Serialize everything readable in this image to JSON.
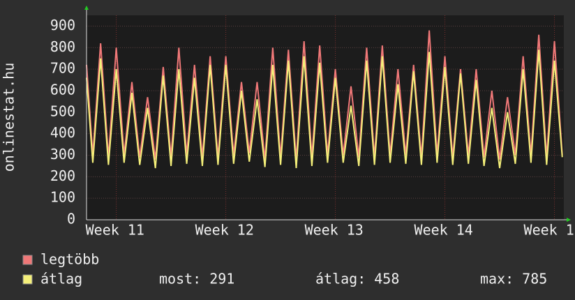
{
  "chart_data": {
    "type": "line",
    "y_label": "onlinestat.hu",
    "x": [
      0,
      0.4,
      0.9,
      1.4,
      1.9,
      2.4,
      2.9,
      3.4,
      3.9,
      4.4,
      4.9,
      5.4,
      5.9,
      6.4,
      6.9,
      7.4,
      7.9,
      8.4,
      8.9,
      9.4,
      9.9,
      10.4,
      10.9,
      11.4,
      11.9,
      12.4,
      12.9,
      13.4,
      13.9,
      14.4,
      14.9,
      15.4,
      15.9,
      16.4,
      16.9,
      17.4,
      17.9,
      18.4,
      18.9,
      19.4,
      19.9,
      20.4,
      20.9,
      21.4,
      21.9,
      22.4,
      22.9,
      23.4,
      23.9,
      24.4,
      24.9,
      25.4,
      25.9,
      26.4,
      26.9,
      27.4,
      27.9,
      28.4,
      28.9,
      29.4,
      29.9,
      30.4
    ],
    "series": [
      {
        "name": "legtöbb",
        "color": "#f07878",
        "values": [
          720,
          300,
          820,
          290,
          800,
          300,
          640,
          290,
          570,
          280,
          710,
          290,
          800,
          300,
          720,
          290,
          760,
          290,
          760,
          300,
          640,
          310,
          640,
          280,
          800,
          290,
          790,
          280,
          830,
          290,
          810,
          300,
          700,
          300,
          620,
          290,
          800,
          290,
          810,
          300,
          700,
          300,
          720,
          290,
          880,
          300,
          760,
          290,
          700,
          300,
          700,
          290,
          600,
          280,
          570,
          300,
          760,
          300,
          860,
          290,
          830,
          300
        ]
      },
      {
        "name": "átlag",
        "color": "#f5f07a",
        "values": [
          660,
          265,
          750,
          255,
          700,
          265,
          590,
          255,
          520,
          240,
          670,
          250,
          700,
          260,
          660,
          250,
          720,
          255,
          720,
          260,
          600,
          270,
          560,
          245,
          720,
          255,
          740,
          240,
          760,
          250,
          730,
          265,
          660,
          265,
          530,
          250,
          740,
          255,
          760,
          265,
          630,
          260,
          690,
          255,
          780,
          265,
          710,
          255,
          680,
          260,
          650,
          250,
          520,
          240,
          500,
          260,
          700,
          265,
          790,
          255,
          740,
          291
        ]
      }
    ],
    "xlim": [
      0,
      30.5
    ],
    "xticks": [
      {
        "value": 1.9,
        "label": "Week 11"
      },
      {
        "value": 8.9,
        "label": "Week 12"
      },
      {
        "value": 15.9,
        "label": "Week 13"
      },
      {
        "value": 22.9,
        "label": "Week 14"
      },
      {
        "value": 29.9,
        "label": "Week 1"
      }
    ],
    "ylim": [
      0,
      950
    ],
    "yticks": [
      0,
      100,
      200,
      300,
      400,
      500,
      600,
      700,
      800,
      900
    ],
    "grid": true,
    "stats": [
      {
        "label": "most:",
        "value": 291
      },
      {
        "label": "átlag:",
        "value": 458
      },
      {
        "label": "max:",
        "value": 785
      }
    ]
  }
}
